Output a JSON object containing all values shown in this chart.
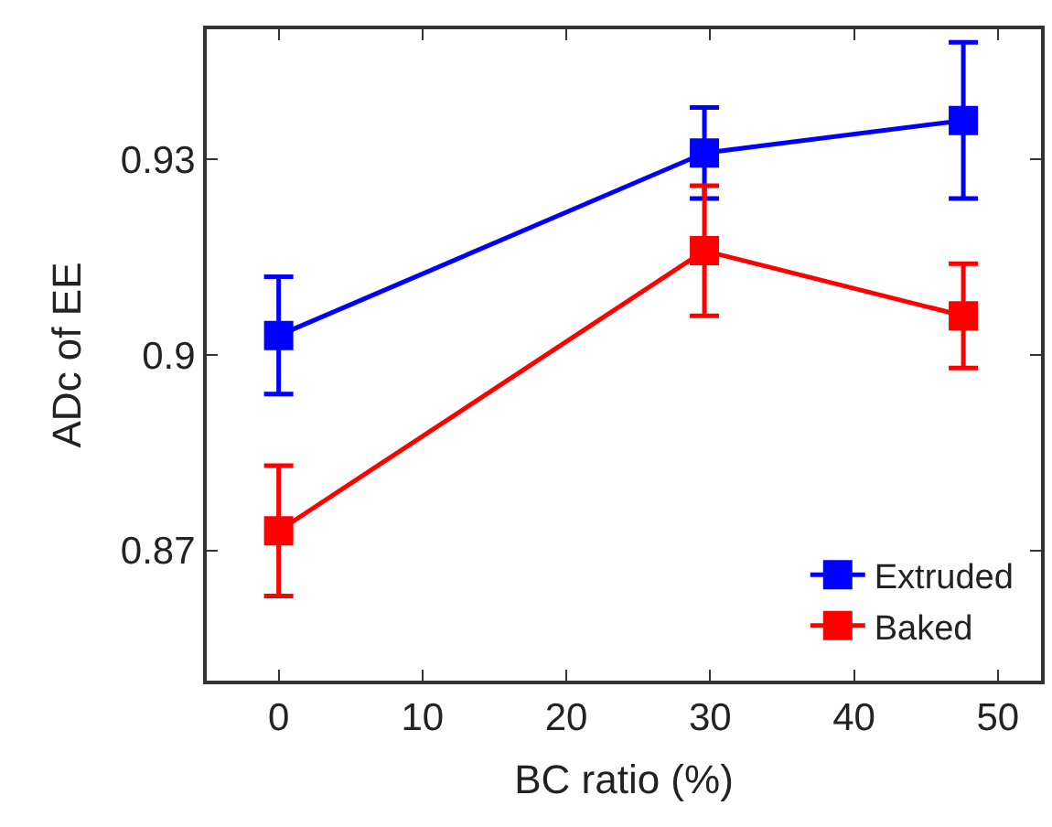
{
  "chart_data": {
    "type": "line",
    "xlabel": "BC ratio (%)",
    "ylabel": "ADc of EE",
    "xlim": [
      -5,
      53
    ],
    "xticks": [
      0,
      10,
      20,
      30,
      40,
      50
    ],
    "ylim": [
      0.85,
      0.95
    ],
    "yticks": [
      0.87,
      0.9,
      0.93
    ],
    "marker": "square",
    "line_style": "solid",
    "legend": "bottom right",
    "series": [
      {
        "name": "Extruded",
        "color": "#0000ff",
        "x": [
          0,
          29.6,
          47.6
        ],
        "values": [
          0.903,
          0.931,
          0.936
        ],
        "errors": [
          0.009,
          0.007,
          0.012
        ]
      },
      {
        "name": "Baked",
        "color": "#ff0000",
        "x": [
          0,
          29.6,
          47.6
        ],
        "values": [
          0.873,
          0.916,
          0.906
        ],
        "errors": [
          0.01,
          0.01,
          0.008
        ]
      }
    ]
  }
}
